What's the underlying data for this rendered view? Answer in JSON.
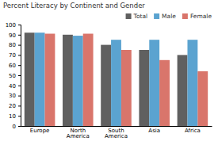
{
  "chart_data": {
    "type": "bar",
    "title": "Percent Literacy by Continent and Gender",
    "categories": [
      "Europe",
      "North\nAmerica",
      "South\nAmerica",
      "Asia",
      "Africa"
    ],
    "series": [
      {
        "name": "Total",
        "color": "#606060",
        "values": [
          92,
          90,
          80,
          75,
          70
        ]
      },
      {
        "name": "Male",
        "color": "#5ba3d0",
        "values": [
          92,
          89,
          85,
          85,
          85
        ]
      },
      {
        "name": "Female",
        "color": "#d9756b",
        "values": [
          91,
          91,
          75,
          65,
          54
        ]
      }
    ],
    "ylim": [
      0,
      100
    ],
    "yticks": [
      0,
      10,
      20,
      30,
      40,
      50,
      60,
      70,
      80,
      90,
      100
    ],
    "grid": false,
    "legend": "top"
  }
}
